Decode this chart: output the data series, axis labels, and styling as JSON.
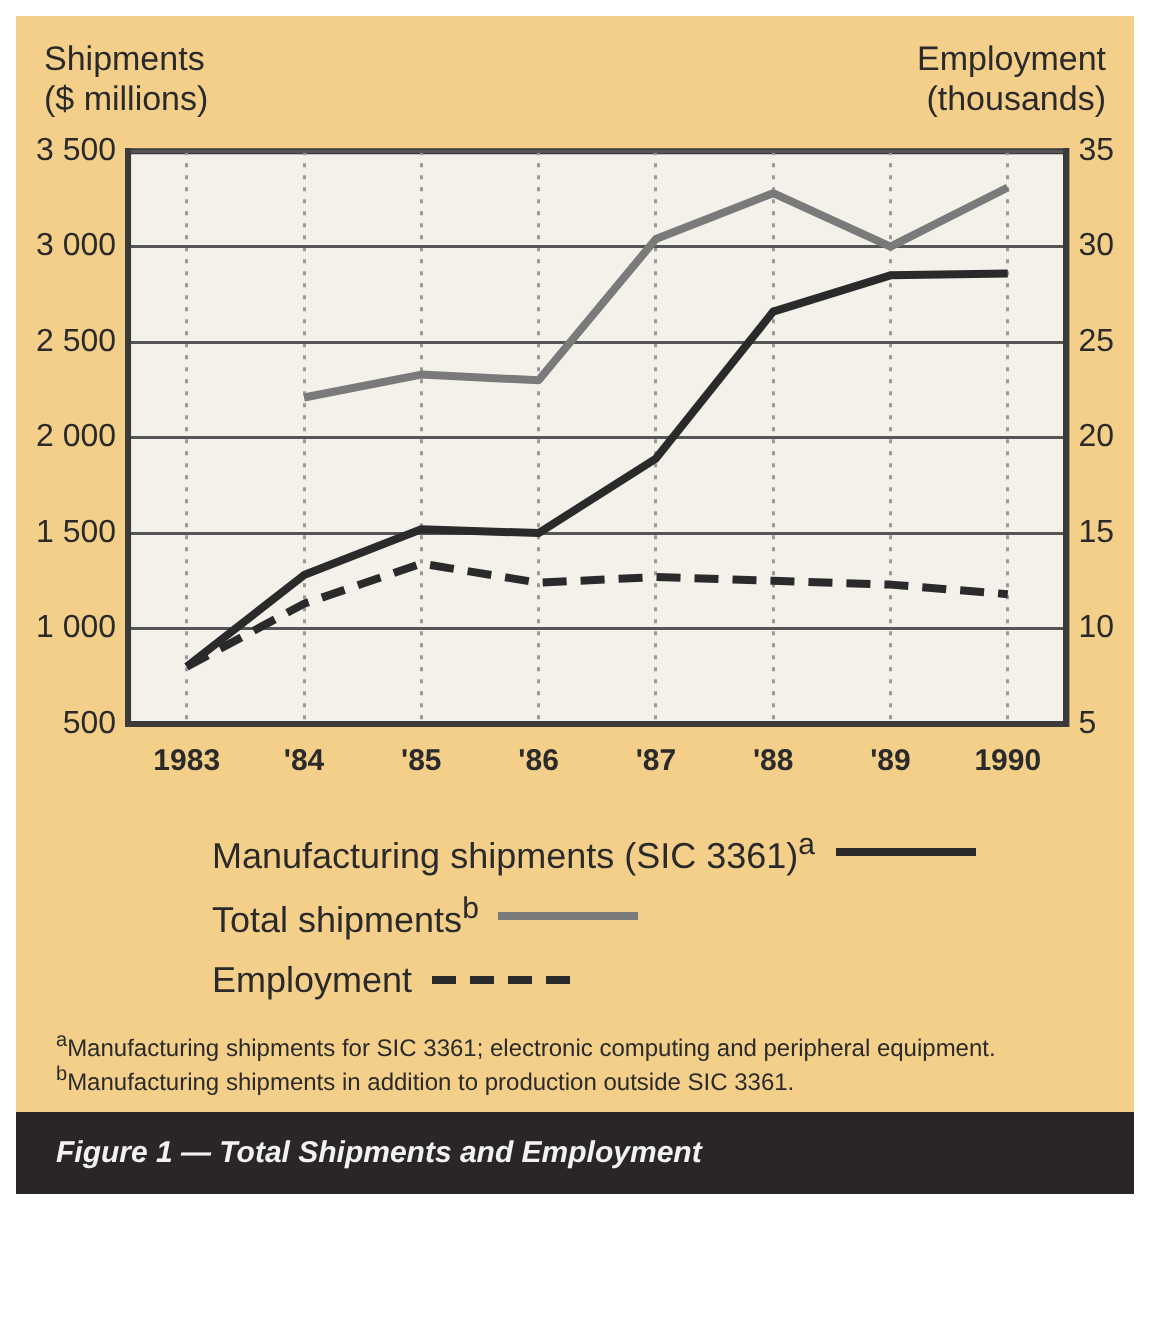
{
  "chart_data": {
    "type": "line",
    "title": "Figure 1 — Total Shipments and Employment",
    "ylabel": "Shipments ($ millions)",
    "y2label": "Employment (thousands)",
    "categories": [
      "1983",
      "'84",
      "'85",
      "'86",
      "'87",
      "'88",
      "'89",
      "1990"
    ],
    "series": [
      {
        "name": "Manufacturing shipments (SIC 3361)$^{a}$",
        "color": "#2a2a2a",
        "values": [
          800,
          1280,
          1520,
          1500,
          1890,
          2660,
          2850,
          2860
        ]
      },
      {
        "name": "Total shipments$^{b}$",
        "color": "#7a7a7a",
        "values": [
          null,
          2210,
          2330,
          2300,
          3040,
          3280,
          3000,
          3310
        ]
      },
      {
        "name": "Employment",
        "color": "#2a2a2a",
        "axis": "y2",
        "line_style": "dashed",
        "values": [
          8.0,
          11.3,
          13.4,
          12.4,
          12.7,
          12.5,
          12.3,
          11.8
        ]
      }
    ],
    "ylim": [
      500,
      3500
    ],
    "yticks": [
      {
        "value": 500,
        "label": "500"
      },
      {
        "value": 1000,
        "label": "1 000"
      },
      {
        "value": 1500,
        "label": "1 500"
      },
      {
        "value": 2000,
        "label": "2 000"
      },
      {
        "value": 2500,
        "label": "2 500"
      },
      {
        "value": 3000,
        "label": "3 000"
      },
      {
        "value": 3500,
        "label": "3 500"
      }
    ],
    "y2lim": [
      5,
      35
    ],
    "y2ticks": [
      5,
      10,
      15,
      20,
      25,
      30,
      35
    ],
    "grid": true,
    "legend": "bottom",
    "marker": "none",
    "line_style": "solid",
    "annotations": [
      "$^{a}$Manufacturing shipments for SIC 3361; electronic computing and peripheral equipment.",
      "$^{b}$Manufacturing shipments in addition to production outside SIC 3361."
    ]
  }
}
